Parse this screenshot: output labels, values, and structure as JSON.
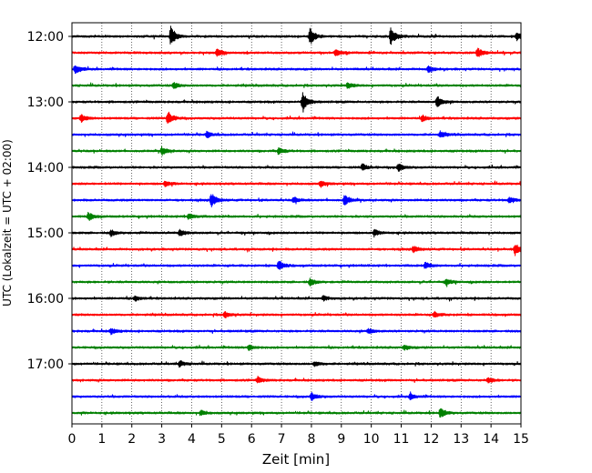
{
  "chart_data": {
    "type": "line",
    "subtype": "seismogram-helicorder",
    "xlabel": "Zeit  [min]",
    "ylabel": "UTC (Lokalzeit = UTC + 02:00)",
    "xlim": [
      0,
      15
    ],
    "x_ticks": [
      "0",
      "1",
      "2",
      "3",
      "4",
      "5",
      "6",
      "7",
      "8",
      "9",
      "10",
      "11",
      "12",
      "13",
      "14",
      "15"
    ],
    "y_tick_labels": [
      "12:00",
      "13:00",
      "14:00",
      "15:00",
      "16:00",
      "17:00"
    ],
    "grid": {
      "vertical_dotted_every_min": 1
    },
    "rows_per_hour": 4,
    "row_minutes": 15,
    "color_cycle": [
      "#000000",
      "#ff0000",
      "#0000ff",
      "#008000"
    ],
    "series": [
      {
        "start": "12:00",
        "events": [
          [
            3.3,
            1.0
          ],
          [
            7.95,
            0.85
          ],
          [
            10.65,
            0.9
          ],
          [
            14.85,
            0.4
          ]
        ]
      },
      {
        "start": "12:15",
        "events": [
          [
            4.85,
            0.45
          ],
          [
            8.8,
            0.35
          ],
          [
            13.55,
            0.5
          ]
        ]
      },
      {
        "start": "12:30",
        "events": [
          [
            0.1,
            0.5
          ],
          [
            11.9,
            0.35
          ]
        ]
      },
      {
        "start": "12:45",
        "events": [
          [
            3.4,
            0.3
          ],
          [
            9.2,
            0.3
          ]
        ]
      },
      {
        "start": "13:00",
        "events": [
          [
            7.7,
            0.95
          ],
          [
            12.2,
            0.6
          ]
        ]
      },
      {
        "start": "13:15",
        "events": [
          [
            0.3,
            0.4
          ],
          [
            3.2,
            0.7
          ],
          [
            11.7,
            0.3
          ]
        ]
      },
      {
        "start": "13:30",
        "events": [
          [
            4.5,
            0.3
          ],
          [
            12.3,
            0.3
          ]
        ]
      },
      {
        "start": "13:45",
        "events": [
          [
            3.0,
            0.4
          ],
          [
            6.9,
            0.35
          ]
        ]
      },
      {
        "start": "14:00",
        "events": [
          [
            9.7,
            0.35
          ],
          [
            10.9,
            0.4
          ]
        ]
      },
      {
        "start": "14:15",
        "events": [
          [
            3.1,
            0.3
          ],
          [
            8.3,
            0.3
          ]
        ]
      },
      {
        "start": "14:30",
        "events": [
          [
            4.65,
            0.7
          ],
          [
            7.4,
            0.3
          ],
          [
            9.1,
            0.6
          ],
          [
            14.6,
            0.3
          ]
        ]
      },
      {
        "start": "14:45",
        "events": [
          [
            0.55,
            0.4
          ],
          [
            3.9,
            0.3
          ]
        ]
      },
      {
        "start": "15:00",
        "events": [
          [
            1.3,
            0.3
          ],
          [
            3.6,
            0.35
          ],
          [
            10.1,
            0.3
          ]
        ]
      },
      {
        "start": "15:15",
        "events": [
          [
            14.8,
            0.6
          ],
          [
            11.4,
            0.3
          ]
        ]
      },
      {
        "start": "15:30",
        "events": [
          [
            6.9,
            0.5
          ],
          [
            11.8,
            0.3
          ]
        ]
      },
      {
        "start": "15:45",
        "events": [
          [
            7.95,
            0.35
          ],
          [
            12.5,
            0.3
          ]
        ]
      },
      {
        "start": "16:00",
        "events": [
          [
            2.1,
            0.25
          ],
          [
            8.4,
            0.25
          ]
        ]
      },
      {
        "start": "16:15",
        "events": [
          [
            5.1,
            0.3
          ],
          [
            12.1,
            0.3
          ]
        ]
      },
      {
        "start": "16:30",
        "events": [
          [
            1.3,
            0.3
          ],
          [
            9.9,
            0.25
          ]
        ]
      },
      {
        "start": "16:45",
        "events": [
          [
            5.9,
            0.3
          ],
          [
            11.1,
            0.25
          ]
        ]
      },
      {
        "start": "17:00",
        "events": [
          [
            3.6,
            0.3
          ],
          [
            8.1,
            0.25
          ]
        ]
      },
      {
        "start": "17:15",
        "events": [
          [
            6.2,
            0.3
          ],
          [
            13.9,
            0.3
          ]
        ]
      },
      {
        "start": "17:30",
        "events": [
          [
            8.0,
            0.4
          ],
          [
            11.3,
            0.3
          ]
        ]
      },
      {
        "start": "17:45",
        "events": [
          [
            12.3,
            0.5
          ],
          [
            4.3,
            0.25
          ]
        ]
      }
    ]
  }
}
